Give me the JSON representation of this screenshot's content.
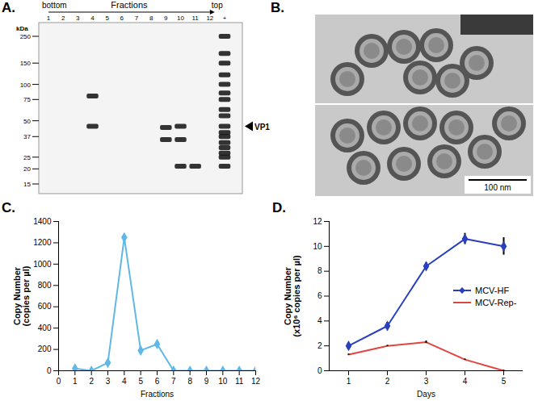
{
  "panels": {
    "A": {
      "label": "A.",
      "header": {
        "left": "bottom",
        "center": "Fractions",
        "right": "top"
      },
      "lanes": [
        "1",
        "2",
        "3",
        "4",
        "5",
        "6",
        "7",
        "8",
        "9",
        "10",
        "11",
        "12",
        "+"
      ],
      "marker_unit": "kDa",
      "markers": [
        250,
        150,
        100,
        75,
        50,
        37,
        25,
        20,
        15
      ],
      "bands": [
        {
          "lane": "4",
          "kDa": [
            80,
            45
          ]
        },
        {
          "lane": "9",
          "kDa": [
            44,
            35
          ]
        },
        {
          "lane": "10",
          "kDa": [
            45,
            35,
            21
          ]
        },
        {
          "lane": "11",
          "kDa": [
            21
          ]
        },
        {
          "lane": "+",
          "kDa": [
            250,
            180,
            150,
            120,
            100,
            85,
            75,
            62,
            55,
            45,
            40,
            37,
            33,
            30,
            27,
            25,
            21
          ]
        }
      ],
      "annotation": "VP1",
      "annotation_kDa": 45
    },
    "B": {
      "label": "B.",
      "scale_bar": "100 nm"
    }
  },
  "chart_data": [
    {
      "panel": "C.",
      "type": "line",
      "x_label": "Fractions",
      "y_label": "Copy Number\n(copies per µl)",
      "x": [
        1,
        2,
        3,
        4,
        5,
        6,
        7,
        8,
        9,
        10,
        11,
        12
      ],
      "values": [
        20,
        0,
        75,
        1250,
        190,
        250,
        0,
        0,
        0,
        0,
        0,
        0
      ],
      "color": "#5fb8e6",
      "marker": "diamond",
      "xlim": [
        0,
        12
      ],
      "xticks": [
        0,
        1,
        2,
        3,
        4,
        5,
        6,
        7,
        8,
        9,
        10,
        11,
        12
      ],
      "ylim": [
        0,
        1400
      ],
      "yticks": [
        0,
        200,
        400,
        600,
        800,
        1000,
        1200,
        1400
      ],
      "grid": false
    },
    {
      "panel": "D.",
      "type": "line",
      "x_label": "Days",
      "y_label": "Copy Number\n(x10⁶ copies per µl)",
      "x": [
        1,
        2,
        3,
        4,
        5
      ],
      "series": [
        {
          "name": "MCV-HF",
          "color": "#2a3fbf",
          "marker": "diamond",
          "values": [
            2.0,
            3.6,
            8.4,
            10.6,
            10.0
          ],
          "errors": [
            0.15,
            0.3,
            0.3,
            0.45,
            0.7
          ]
        },
        {
          "name": "MCV-Rep-",
          "color": "#e2453f",
          "marker": "none",
          "values": [
            1.3,
            2.0,
            2.3,
            0.9,
            0.0
          ],
          "errors": [
            0.05,
            0.05,
            0.1,
            0.05,
            0.05
          ]
        }
      ],
      "xlim": [
        0.5,
        5.5
      ],
      "xticks": [
        1,
        2,
        3,
        4,
        5
      ],
      "ylim": [
        0,
        12
      ],
      "yticks": [
        0,
        2,
        4,
        6,
        8,
        10,
        12
      ],
      "legend": "right",
      "grid": false
    }
  ]
}
